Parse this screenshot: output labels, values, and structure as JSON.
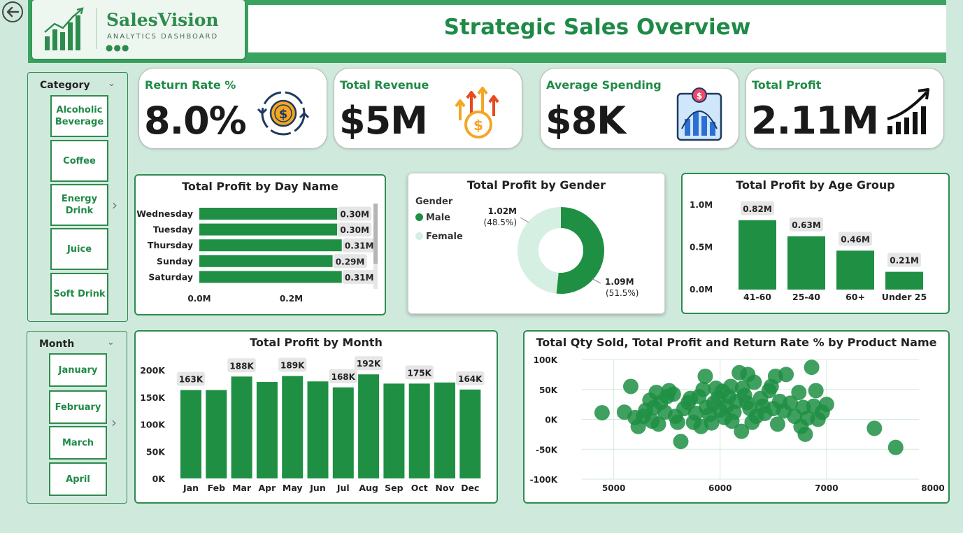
{
  "brand": {
    "name": "SalesVision",
    "tagline": "ANALYTICS DASHBOARD"
  },
  "header": {
    "title": "Strategic Sales Overview"
  },
  "colors": {
    "accent": "#1f8a47",
    "bar": "#1f8f44",
    "background": "#cfeadd",
    "female": "#d6efe3"
  },
  "kpis": [
    {
      "title": "Return Rate %",
      "value": "8.0%",
      "icon": "circular-dollar-icon"
    },
    {
      "title": "Total Revenue",
      "value": "$5M",
      "icon": "rising-arrows-coin-icon"
    },
    {
      "title": "Average Spending",
      "value": "$8K",
      "icon": "bar-chart-dollar-icon"
    },
    {
      "title": "Total Profit",
      "value": "2.11M",
      "icon": "growth-bars-icon"
    }
  ],
  "slicers": {
    "category": {
      "title": "Category",
      "items": [
        "Alcoholic Beverage",
        "Coffee",
        "Energy Drink",
        "Juice",
        "Soft Drink"
      ]
    },
    "month": {
      "title": "Month",
      "items": [
        "January",
        "February",
        "March",
        "April"
      ]
    }
  },
  "chart_data": [
    {
      "type": "bar",
      "orientation": "horizontal",
      "title": "Total Profit by Day Name",
      "categories": [
        "Wednesday",
        "Tuesday",
        "Thursday",
        "Sunday",
        "Saturday"
      ],
      "values": [
        0.3,
        0.3,
        0.31,
        0.29,
        0.31
      ],
      "labels": [
        "0.30M",
        "0.30M",
        "0.31M",
        "0.29M",
        "0.31M"
      ],
      "xticks": [
        "0.0M",
        "0.2M"
      ],
      "xlim": [
        0,
        0.35
      ]
    },
    {
      "type": "pie",
      "variant": "donut",
      "title": "Total Profit by Gender",
      "legend_title": "Gender",
      "series": [
        {
          "name": "Male",
          "value": 1.09,
          "label": "1.09M",
          "pct": "(51.5%)"
        },
        {
          "name": "Female",
          "value": 1.02,
          "label": "1.02M",
          "pct": "(48.5%)"
        }
      ]
    },
    {
      "type": "bar",
      "title": "Total Profit by Age Group",
      "categories": [
        "41-60",
        "25-40",
        "60+",
        "Under 25"
      ],
      "values": [
        0.82,
        0.63,
        0.46,
        0.21
      ],
      "labels": [
        "0.82M",
        "0.63M",
        "0.46M",
        "0.21M"
      ],
      "yticks": [
        "1.0M",
        "0.5M",
        "0.0M"
      ],
      "ylim": [
        0,
        1.0
      ]
    },
    {
      "type": "bar",
      "title": "Total Profit by Month",
      "categories": [
        "Jan",
        "Feb",
        "Mar",
        "Apr",
        "May",
        "Jun",
        "Jul",
        "Aug",
        "Sep",
        "Oct",
        "Nov",
        "Dec"
      ],
      "values": [
        163,
        163,
        188,
        178,
        189,
        179,
        168,
        192,
        175,
        175,
        177,
        164
      ],
      "labels": [
        "163K",
        "",
        "188K",
        "",
        "189K",
        "",
        "168K",
        "192K",
        "",
        "175K",
        "",
        "164K"
      ],
      "yticks": [
        "200K",
        "150K",
        "100K",
        "50K",
        "0K"
      ],
      "ylim": [
        0,
        200
      ]
    },
    {
      "type": "scatter",
      "title": "Total Qty Sold, Total Profit and Return Rate % by Product Name",
      "xticks": [
        "5000",
        "6000",
        "7000",
        "8000"
      ],
      "yticks": [
        "100K",
        "50K",
        "0K",
        "-50K",
        "-100K"
      ],
      "xlim": [
        4700,
        8000
      ],
      "ylim": [
        -100,
        100
      ],
      "points": [
        [
          4890,
          11
        ],
        [
          5160,
          55
        ],
        [
          5100,
          12
        ],
        [
          5200,
          3
        ],
        [
          5230,
          -12
        ],
        [
          5280,
          5
        ],
        [
          5300,
          15
        ],
        [
          5340,
          32
        ],
        [
          5360,
          -3
        ],
        [
          5380,
          20
        ],
        [
          5400,
          45
        ],
        [
          5420,
          -8
        ],
        [
          5440,
          28
        ],
        [
          5480,
          12
        ],
        [
          5500,
          38
        ],
        [
          5520,
          48
        ],
        [
          5560,
          42
        ],
        [
          5580,
          5
        ],
        [
          5600,
          -5
        ],
        [
          5630,
          -37
        ],
        [
          5660,
          18
        ],
        [
          5700,
          28
        ],
        [
          5720,
          35
        ],
        [
          5750,
          -5
        ],
        [
          5770,
          10
        ],
        [
          5800,
          38
        ],
        [
          5820,
          -12
        ],
        [
          5840,
          50
        ],
        [
          5860,
          72
        ],
        [
          5870,
          20
        ],
        [
          5900,
          8
        ],
        [
          5920,
          -6
        ],
        [
          5940,
          27
        ],
        [
          5960,
          52
        ],
        [
          5980,
          36
        ],
        [
          6000,
          15
        ],
        [
          6020,
          47
        ],
        [
          6040,
          3
        ],
        [
          6060,
          22
        ],
        [
          6080,
          38
        ],
        [
          6100,
          55
        ],
        [
          6110,
          -3
        ],
        [
          6130,
          12
        ],
        [
          6150,
          30
        ],
        [
          6180,
          78
        ],
        [
          6200,
          -20
        ],
        [
          6210,
          52
        ],
        [
          6230,
          40
        ],
        [
          6250,
          28
        ],
        [
          6260,
          75
        ],
        [
          6280,
          18
        ],
        [
          6300,
          -5
        ],
        [
          6320,
          62
        ],
        [
          6340,
          5
        ],
        [
          6380,
          35
        ],
        [
          6400,
          22
        ],
        [
          6420,
          10
        ],
        [
          6460,
          48
        ],
        [
          6480,
          55
        ],
        [
          6500,
          18
        ],
        [
          6520,
          72
        ],
        [
          6540,
          -8
        ],
        [
          6560,
          30
        ],
        [
          6600,
          14
        ],
        [
          6620,
          75
        ],
        [
          6660,
          27
        ],
        [
          6700,
          5
        ],
        [
          6740,
          45
        ],
        [
          6760,
          -12
        ],
        [
          6780,
          20
        ],
        [
          6800,
          -25
        ],
        [
          6820,
          2
        ],
        [
          6860,
          87
        ],
        [
          6880,
          22
        ],
        [
          6900,
          48
        ],
        [
          6920,
          0
        ],
        [
          6960,
          12
        ],
        [
          7000,
          25
        ],
        [
          7450,
          -15
        ],
        [
          7650,
          -47
        ]
      ]
    }
  ]
}
